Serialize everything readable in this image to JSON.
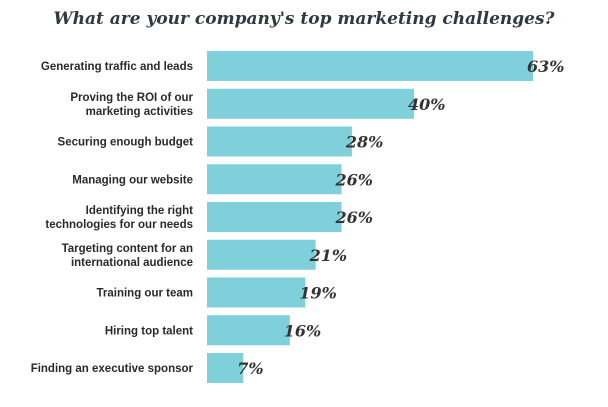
{
  "chart_data": {
    "type": "bar",
    "orientation": "horizontal",
    "title": "What are your company's top marketing challenges?",
    "categories": [
      "Generating traffic and leads",
      "Proving the ROI of our marketing activities",
      "Securing enough budget",
      "Managing our website",
      "Identifying the right technologies for our needs",
      "Targeting content for an international audience",
      "Training our team",
      "Hiring top talent",
      "Finding an executive sponsor"
    ],
    "category_lines": [
      [
        "Generating traffic and leads"
      ],
      [
        "Proving the ROI of our",
        "marketing activities"
      ],
      [
        "Securing enough budget"
      ],
      [
        "Managing our website"
      ],
      [
        "Identifying the right",
        "technologies for our needs"
      ],
      [
        "Targeting content for an",
        "international audience"
      ],
      [
        "Training our team"
      ],
      [
        "Hiring top talent"
      ],
      [
        "Finding an executive sponsor"
      ]
    ],
    "values": [
      63,
      40,
      28,
      26,
      26,
      21,
      19,
      16,
      7
    ],
    "value_labels": [
      "63%",
      "40%",
      "28%",
      "26%",
      "26%",
      "21%",
      "19%",
      "16%",
      "7%"
    ],
    "xlim": [
      0,
      63
    ],
    "xlabel": "",
    "ylabel": "",
    "grid": false,
    "bar_color": "#7fd0da"
  }
}
